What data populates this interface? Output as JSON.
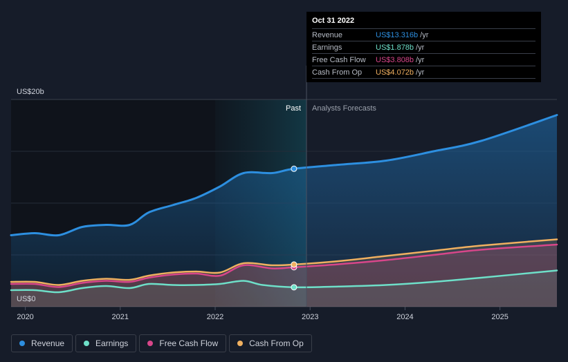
{
  "colors": {
    "revenue": "#2d8fe0",
    "earnings": "#6ee0c9",
    "fcf": "#d8468a",
    "cfo": "#f0b060"
  },
  "tooltip": {
    "date": "Oct 31 2022",
    "rows": [
      {
        "label": "Revenue",
        "value": "US$13.316b",
        "unit": "/yr",
        "key": "revenue"
      },
      {
        "label": "Earnings",
        "value": "US$1.878b",
        "unit": "/yr",
        "key": "earnings"
      },
      {
        "label": "Free Cash Flow",
        "value": "US$3.808b",
        "unit": "/yr",
        "key": "fcf"
      },
      {
        "label": "Cash From Op",
        "value": "US$4.072b",
        "unit": "/yr",
        "key": "cfo"
      }
    ]
  },
  "legend": [
    {
      "label": "Revenue",
      "key": "revenue"
    },
    {
      "label": "Earnings",
      "key": "earnings"
    },
    {
      "label": "Free Cash Flow",
      "key": "fcf"
    },
    {
      "label": "Cash From Op",
      "key": "cfo"
    }
  ],
  "chart_data": {
    "type": "line",
    "title": "",
    "y_top_label": "US$20b",
    "y_zero_label": "US$0",
    "ylim": [
      0,
      20
    ],
    "xlim": [
      2019.85,
      2025.6
    ],
    "divider_x": 2022.83,
    "past_label": "Past",
    "forecast_label": "Analysts Forecasts",
    "x_ticks": [
      2020,
      2021,
      2022,
      2023,
      2024,
      2025
    ],
    "x_tick_labels": [
      "2020",
      "2021",
      "2022",
      "2023",
      "2024",
      "2025"
    ],
    "grid_values": [
      0,
      5,
      10,
      15,
      20
    ],
    "series": [
      {
        "name": "Revenue",
        "key": "revenue",
        "x": [
          2019.85,
          2020.1,
          2020.35,
          2020.6,
          2020.85,
          2021.1,
          2021.3,
          2021.55,
          2021.8,
          2022.05,
          2022.3,
          2022.6,
          2022.83,
          2023.3,
          2023.8,
          2024.3,
          2024.8,
          2025.6
        ],
        "values": [
          6.9,
          7.1,
          6.9,
          7.7,
          7.9,
          7.9,
          9.1,
          9.8,
          10.5,
          11.6,
          12.9,
          12.9,
          13.316,
          13.7,
          14.1,
          15.0,
          16.0,
          18.5
        ]
      },
      {
        "name": "Earnings",
        "key": "earnings",
        "x": [
          2019.85,
          2020.1,
          2020.35,
          2020.6,
          2020.85,
          2021.1,
          2021.3,
          2021.55,
          2021.8,
          2022.05,
          2022.3,
          2022.5,
          2022.83,
          2023.3,
          2023.8,
          2024.3,
          2024.8,
          2025.6
        ],
        "values": [
          1.6,
          1.6,
          1.4,
          1.8,
          2.0,
          1.8,
          2.2,
          2.1,
          2.1,
          2.2,
          2.5,
          2.1,
          1.878,
          1.95,
          2.1,
          2.4,
          2.8,
          3.5
        ]
      },
      {
        "name": "Free Cash Flow",
        "key": "fcf",
        "x": [
          2019.85,
          2020.1,
          2020.35,
          2020.6,
          2020.85,
          2021.1,
          2021.3,
          2021.55,
          2021.8,
          2022.05,
          2022.3,
          2022.6,
          2022.83,
          2023.3,
          2023.8,
          2024.3,
          2024.8,
          2025.6
        ],
        "values": [
          2.2,
          2.2,
          1.9,
          2.3,
          2.5,
          2.4,
          2.8,
          3.1,
          3.2,
          3.0,
          4.0,
          3.7,
          3.808,
          4.1,
          4.5,
          5.0,
          5.5,
          6.0
        ]
      },
      {
        "name": "Cash From Op",
        "key": "cfo",
        "x": [
          2019.85,
          2020.1,
          2020.35,
          2020.6,
          2020.85,
          2021.1,
          2021.3,
          2021.55,
          2021.8,
          2022.05,
          2022.3,
          2022.6,
          2022.83,
          2023.3,
          2023.8,
          2024.3,
          2024.8,
          2025.6
        ],
        "values": [
          2.4,
          2.4,
          2.1,
          2.5,
          2.7,
          2.6,
          3.0,
          3.3,
          3.4,
          3.3,
          4.2,
          4.0,
          4.072,
          4.4,
          4.9,
          5.4,
          5.9,
          6.5
        ]
      }
    ]
  }
}
